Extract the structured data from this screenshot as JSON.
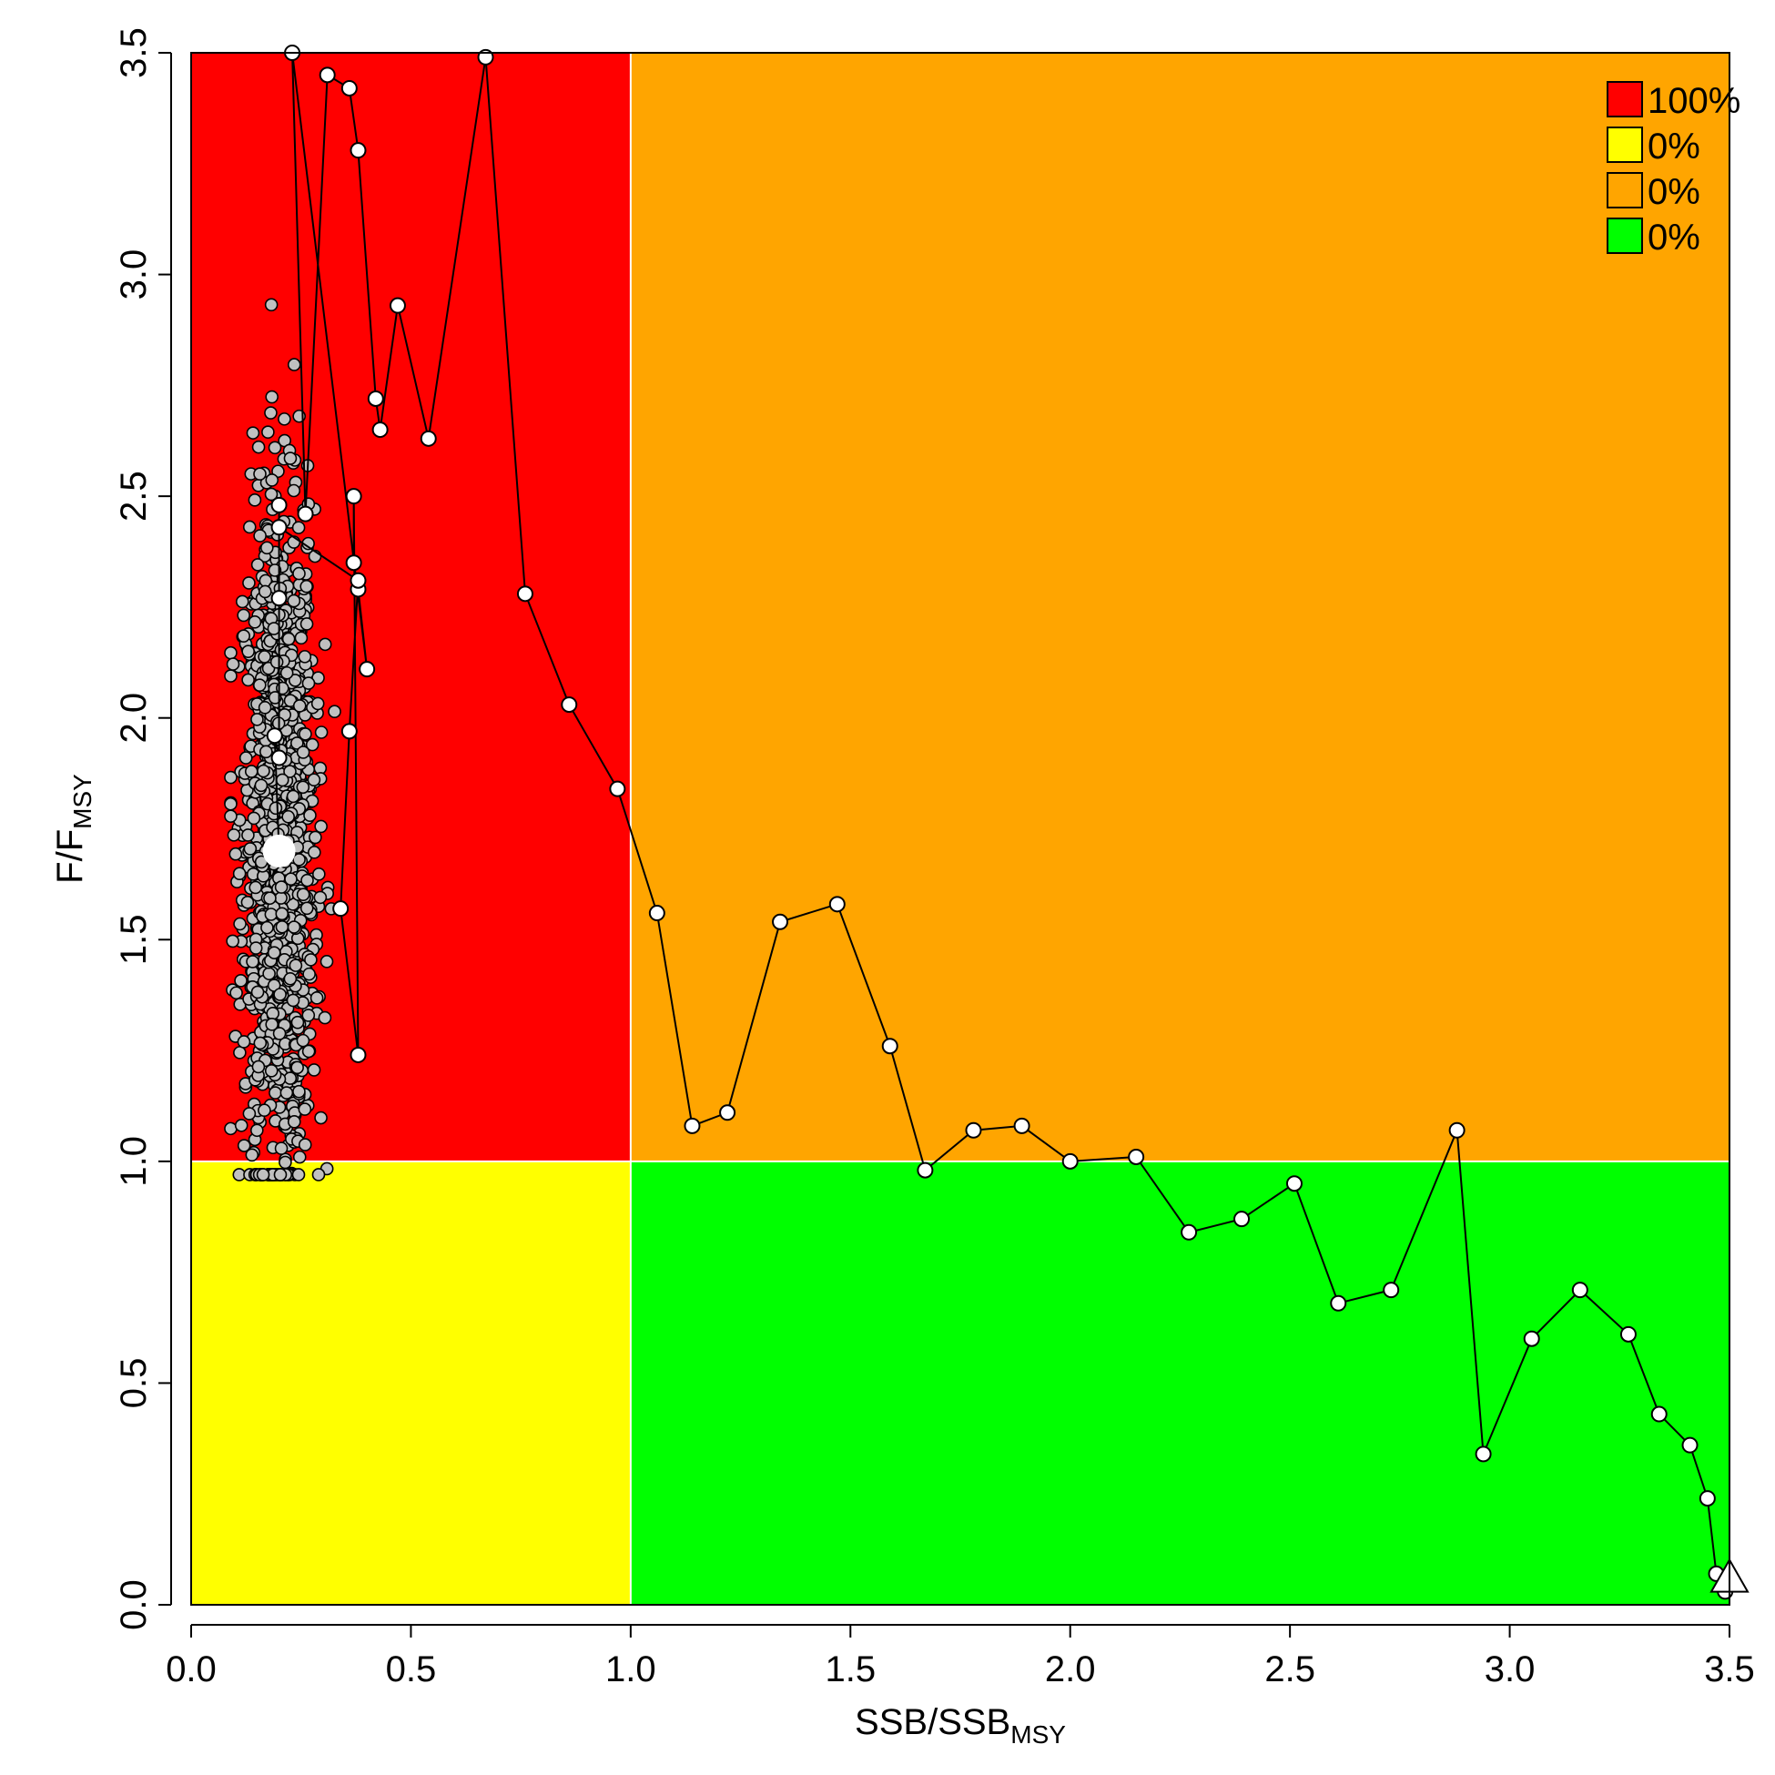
{
  "chart_data": {
    "type": "scatter",
    "title": "",
    "xlabel": {
      "main": "SSB/SSB",
      "sub": "MSY"
    },
    "ylabel": {
      "main": "F/F",
      "sub": "MSY"
    },
    "xlim": [
      0,
      3.5
    ],
    "ylim": [
      0,
      3.5
    ],
    "x_ticks": [
      "0.0",
      "0.5",
      "1.0",
      "1.5",
      "2.0",
      "2.5",
      "3.0",
      "3.5"
    ],
    "y_ticks": [
      "0.0",
      "0.5",
      "1.0",
      "1.5",
      "2.0",
      "2.5",
      "3.0",
      "3.5"
    ],
    "reference_lines": {
      "x": 1.0,
      "y": 1.0
    },
    "grid": false,
    "quadrants": [
      {
        "name": "overfished-overfishing",
        "xrange": [
          0,
          1
        ],
        "yrange": [
          1,
          3.5
        ],
        "color": "#ff0000"
      },
      {
        "name": "overfished-no-overfishing",
        "xrange": [
          0,
          1
        ],
        "yrange": [
          0,
          1
        ],
        "color": "#ffff00"
      },
      {
        "name": "not-overfished-overfishing",
        "xrange": [
          1,
          3.5
        ],
        "yrange": [
          1,
          3.5
        ],
        "color": "#ffa500"
      },
      {
        "name": "not-overfished-no-overfishing",
        "xrange": [
          1,
          3.5
        ],
        "yrange": [
          0,
          1
        ],
        "color": "#00ff00"
      }
    ],
    "legend": {
      "position": "top-right",
      "entries": [
        {
          "label": "100%",
          "color": "#ff0000"
        },
        {
          "label": "0%",
          "color": "#ffff00"
        },
        {
          "label": "0%",
          "color": "#ffa500"
        },
        {
          "label": "0%",
          "color": "#00ff00"
        }
      ]
    },
    "uncertainty_cloud": {
      "color": "#c0c0c0",
      "center": [
        0.2,
        1.72
      ],
      "n_points": 1400,
      "x_range": [
        0.09,
        0.33
      ],
      "y_range": [
        0.97,
        2.94
      ]
    },
    "trajectory": {
      "color": "#ffffff",
      "start_marker": "triangle",
      "end_marker": "large-circle",
      "points": [
        [
          3.5,
          0.05
        ],
        [
          3.49,
          0.03
        ],
        [
          3.47,
          0.07
        ],
        [
          3.45,
          0.24
        ],
        [
          3.41,
          0.36
        ],
        [
          3.34,
          0.43
        ],
        [
          3.27,
          0.61
        ],
        [
          3.16,
          0.71
        ],
        [
          3.05,
          0.6
        ],
        [
          2.94,
          0.34
        ],
        [
          2.88,
          1.07
        ],
        [
          2.73,
          0.71
        ],
        [
          2.61,
          0.68
        ],
        [
          2.51,
          0.95
        ],
        [
          2.39,
          0.87
        ],
        [
          2.27,
          0.84
        ],
        [
          2.15,
          1.01
        ],
        [
          2.0,
          1.0
        ],
        [
          1.89,
          1.08
        ],
        [
          1.78,
          1.07
        ],
        [
          1.67,
          0.98
        ],
        [
          1.59,
          1.26
        ],
        [
          1.47,
          1.58
        ],
        [
          1.34,
          1.54
        ],
        [
          1.22,
          1.11
        ],
        [
          1.14,
          1.08
        ],
        [
          1.06,
          1.56
        ],
        [
          0.97,
          1.84
        ],
        [
          0.86,
          2.03
        ],
        [
          0.76,
          2.28
        ],
        [
          0.67,
          3.49
        ],
        [
          0.54,
          2.63
        ],
        [
          0.47,
          2.93
        ],
        [
          0.43,
          2.65
        ],
        [
          0.42,
          2.72
        ],
        [
          0.38,
          3.28
        ],
        [
          0.36,
          3.42
        ],
        [
          0.31,
          3.45
        ],
        [
          0.26,
          2.46
        ],
        [
          0.23,
          3.5
        ],
        [
          0.4,
          2.11
        ],
        [
          0.38,
          2.29
        ],
        [
          0.37,
          2.35
        ],
        [
          0.37,
          2.5
        ],
        [
          0.38,
          1.24
        ],
        [
          0.34,
          1.57
        ],
        [
          0.36,
          1.97
        ],
        [
          0.38,
          2.31
        ],
        [
          0.2,
          2.43
        ],
        [
          0.2,
          2.27
        ],
        [
          0.2,
          2.48
        ],
        [
          0.2,
          1.91
        ],
        [
          0.19,
          1.96
        ],
        [
          0.2,
          1.7
        ]
      ]
    }
  }
}
